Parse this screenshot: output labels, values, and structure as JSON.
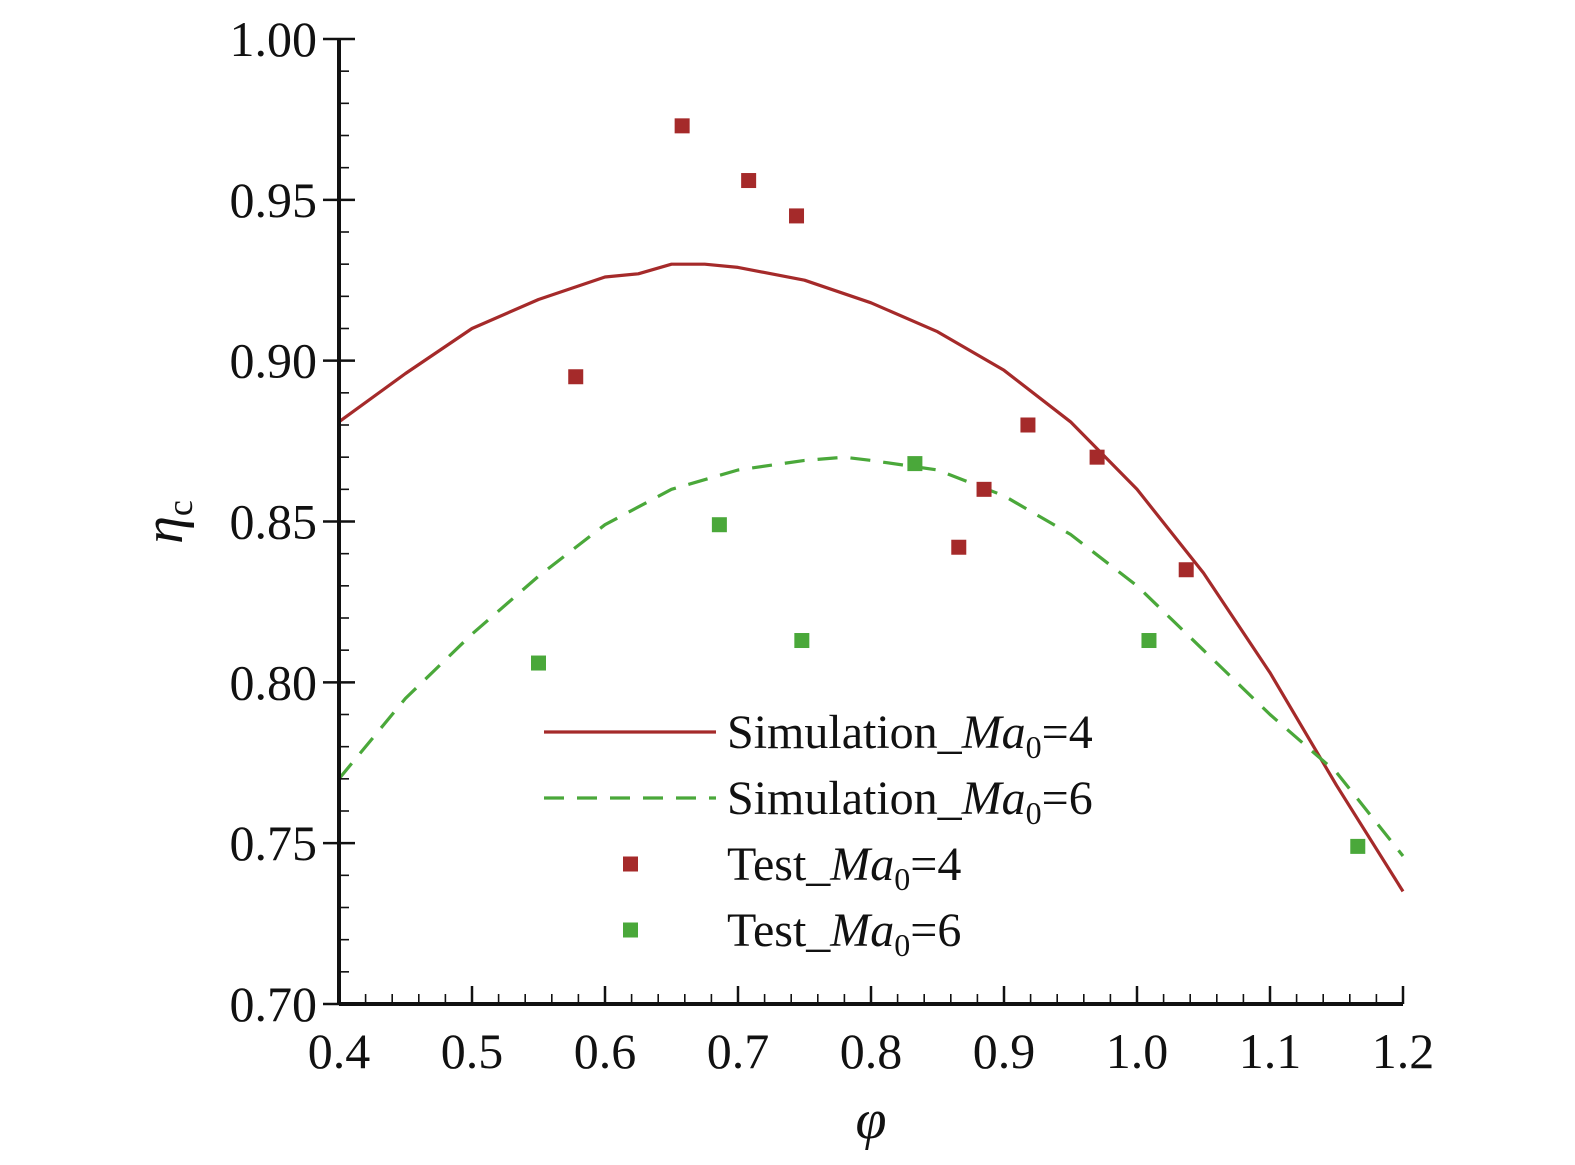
{
  "chart_data": {
    "type": "line",
    "xlabel": "φ",
    "ylabel_main": "η",
    "ylabel_sub": "c",
    "xlim": [
      0.4,
      1.2
    ],
    "ylim": [
      0.7,
      1.0
    ],
    "grid": false,
    "legend_position": "bottom-center",
    "x_ticks": [
      {
        "v": 0.4,
        "label": "0.4"
      },
      {
        "v": 0.5,
        "label": "0.5"
      },
      {
        "v": 0.6,
        "label": "0.6"
      },
      {
        "v": 0.7,
        "label": "0.7"
      },
      {
        "v": 0.8,
        "label": "0.8"
      },
      {
        "v": 0.9,
        "label": "0.9"
      },
      {
        "v": 1.0,
        "label": "1.0"
      },
      {
        "v": 1.1,
        "label": "1.1"
      },
      {
        "v": 1.2,
        "label": "1.2"
      }
    ],
    "y_ticks": [
      {
        "v": 0.7,
        "label": "0.70"
      },
      {
        "v": 0.75,
        "label": "0.75"
      },
      {
        "v": 0.8,
        "label": "0.80"
      },
      {
        "v": 0.85,
        "label": "0.85"
      },
      {
        "v": 0.9,
        "label": "0.90"
      },
      {
        "v": 0.95,
        "label": "0.95"
      },
      {
        "v": 1.0,
        "label": "1.00"
      }
    ],
    "series": [
      {
        "name": "Simulation_Ma0=4",
        "kind": "line",
        "dash": "solid",
        "color": "#a52a2a",
        "x": [
          0.4,
          0.45,
          0.5,
          0.55,
          0.6,
          0.625,
          0.65,
          0.675,
          0.7,
          0.75,
          0.8,
          0.85,
          0.9,
          0.95,
          1.0,
          1.05,
          1.1,
          1.15,
          1.2
        ],
        "y": [
          0.881,
          0.896,
          0.91,
          0.919,
          0.926,
          0.927,
          0.93,
          0.93,
          0.929,
          0.925,
          0.918,
          0.909,
          0.897,
          0.881,
          0.86,
          0.834,
          0.803,
          0.768,
          0.735
        ]
      },
      {
        "name": "Simulation_Ma0=6",
        "kind": "line",
        "dash": "dashed",
        "color": "#4aa83a",
        "x": [
          0.4,
          0.45,
          0.5,
          0.55,
          0.6,
          0.65,
          0.7,
          0.75,
          0.78,
          0.8,
          0.85,
          0.9,
          0.95,
          1.0,
          1.05,
          1.1,
          1.15,
          1.2
        ],
        "y": [
          0.77,
          0.795,
          0.815,
          0.833,
          0.849,
          0.86,
          0.866,
          0.869,
          0.87,
          0.869,
          0.866,
          0.858,
          0.846,
          0.83,
          0.81,
          0.79,
          0.772,
          0.746
        ]
      },
      {
        "name": "Test_Ma0=4",
        "kind": "scatter",
        "color": "#a52a2a",
        "x": [
          0.578,
          0.658,
          0.708,
          0.744,
          0.866,
          0.885,
          0.918,
          0.97,
          1.037
        ],
        "y": [
          0.895,
          0.973,
          0.956,
          0.945,
          0.842,
          0.86,
          0.88,
          0.87,
          0.835
        ]
      },
      {
        "name": "Test_Ma0=6",
        "kind": "scatter",
        "color": "#4aa83a",
        "x": [
          0.55,
          0.686,
          0.748,
          0.833,
          1.009,
          1.166
        ],
        "y": [
          0.806,
          0.849,
          0.813,
          0.868,
          0.813,
          0.749
        ]
      }
    ],
    "legend": [
      {
        "prefix": "Simulation_",
        "ital": "Ma",
        "sub": "0",
        "suffix": "=4",
        "kind": "line",
        "dash": "solid",
        "color": "#a52a2a"
      },
      {
        "prefix": "Simulation_",
        "ital": "Ma",
        "sub": "0",
        "suffix": "=6",
        "kind": "line",
        "dash": "dashed",
        "color": "#4aa83a"
      },
      {
        "prefix": "Test_",
        "ital": "Ma",
        "sub": "0",
        "suffix": "=4",
        "kind": "marker",
        "color": "#a52a2a"
      },
      {
        "prefix": "Test_",
        "ital": "Ma",
        "sub": "0",
        "suffix": "=6",
        "kind": "marker",
        "color": "#4aa83a"
      }
    ]
  }
}
